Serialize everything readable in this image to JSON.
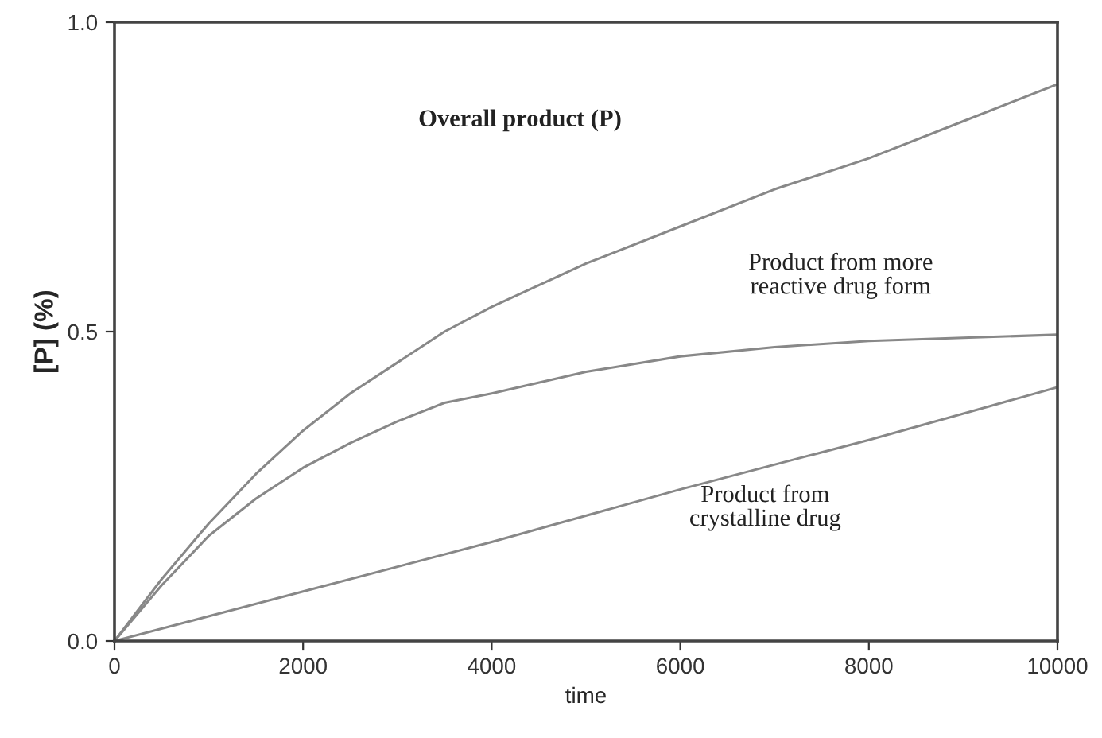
{
  "chart_data": {
    "type": "line",
    "title": "Overall product (P)",
    "xlabel": "time",
    "ylabel": "[P] (%)",
    "xlim": [
      0,
      10000
    ],
    "xticks": [
      0,
      2000,
      4000,
      6000,
      8000,
      10000
    ],
    "ylim": [
      0,
      1.0
    ],
    "yticks": [
      {
        "value": 0,
        "label": "0.0"
      },
      {
        "value": 0.5,
        "label": "0.5"
      },
      {
        "value": 1.0,
        "label": "1.0"
      }
    ],
    "grid": false,
    "marker": "none",
    "line_style": "solid",
    "series": [
      {
        "color": "#888888",
        "x": [
          0,
          500,
          1000,
          1500,
          2000,
          2500,
          3000,
          3500,
          4000,
          5000,
          6000,
          7000,
          8000,
          9000,
          10000
        ],
        "values": [
          0,
          0.1,
          0.19,
          0.27,
          0.34,
          0.4,
          0.45,
          0.5,
          0.54,
          0.61,
          0.67,
          0.73,
          0.78,
          0.84,
          0.9
        ]
      },
      {
        "name": "Product from more\nreactive drug form",
        "color": "#888888",
        "x": [
          0,
          500,
          1000,
          1500,
          2000,
          2500,
          3000,
          3500,
          4000,
          5000,
          6000,
          7000,
          8000,
          9000,
          10000
        ],
        "values": [
          0,
          0.09,
          0.17,
          0.23,
          0.28,
          0.32,
          0.355,
          0.385,
          0.4,
          0.435,
          0.46,
          0.475,
          0.485,
          0.49,
          0.495
        ]
      },
      {
        "name": "Product from\ncrystalline drug",
        "color": "#888888",
        "x": [
          0,
          2000,
          4000,
          6000,
          8000,
          10000
        ],
        "values": [
          0,
          0.08,
          0.16,
          0.245,
          0.325,
          0.41
        ]
      }
    ]
  }
}
